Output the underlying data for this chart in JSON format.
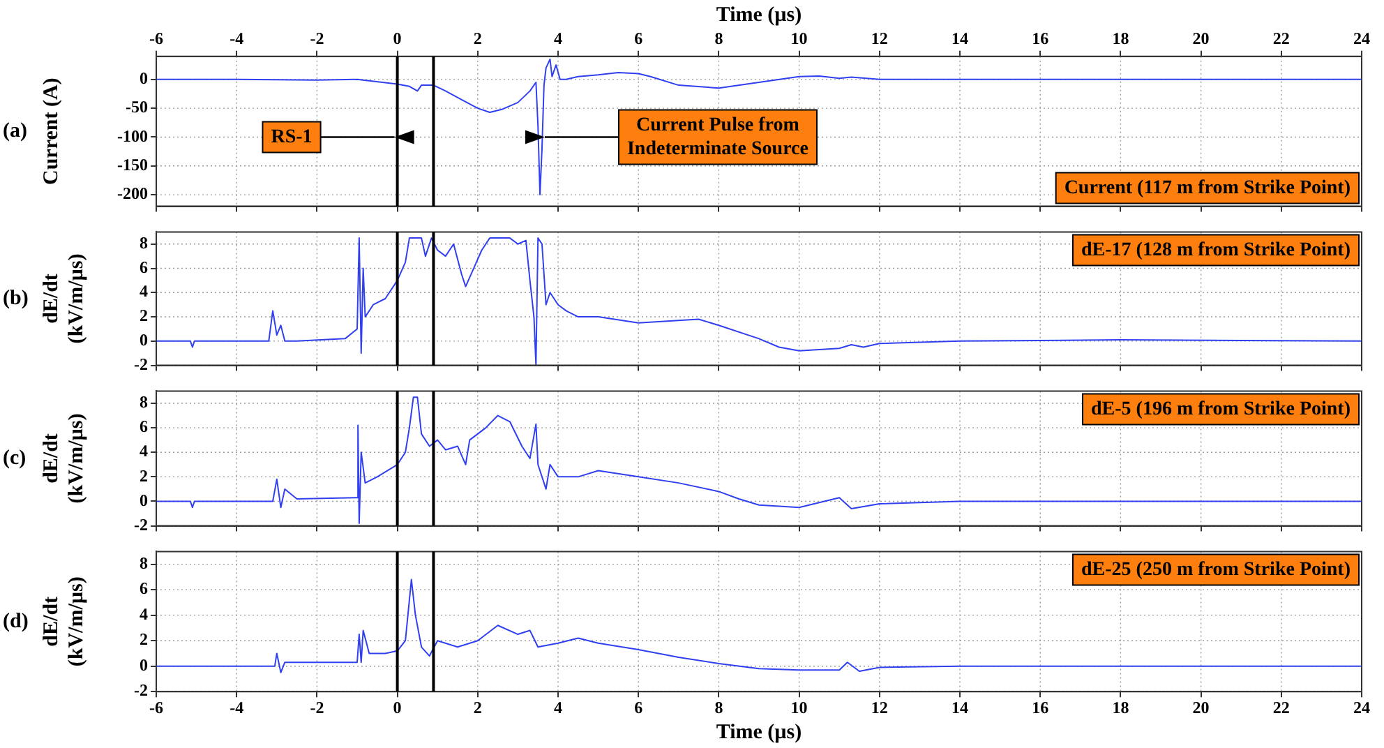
{
  "chart_data": [
    {
      "type": "line",
      "xlabel": "Time (µs)",
      "ylabel": "Current (A)",
      "xlim": [
        -6,
        24
      ],
      "xticks": [
        -6,
        -4,
        -2,
        0,
        2,
        4,
        6,
        8,
        10,
        12,
        14,
        16,
        18,
        20,
        22,
        24
      ],
      "ylim": [
        -220,
        40
      ],
      "yticks": [
        0,
        -50,
        -100,
        -150,
        -200
      ],
      "grid": true,
      "legend": false,
      "marker": "none",
      "line_style": "solid",
      "annotations": [
        "(a)",
        "Current (117 m from Strike Point)",
        {
          "text": "RS-1",
          "x": 0,
          "y": -100
        },
        {
          "text": "Current Pulse from\nIndeterminate Source",
          "x": 3.6,
          "y": -100
        }
      ],
      "ref_lines": [
        {
          "axis": "x",
          "value": 0,
          "color": "#000000"
        },
        {
          "axis": "x",
          "value": 0.9,
          "color": "#000000"
        }
      ],
      "series": [
        {
          "color": "#3040f0",
          "x": [
            -6,
            -4,
            -2,
            -1,
            0,
            0.3,
            0.5,
            0.6,
            0.9,
            1.2,
            1.6,
            2,
            2.3,
            2.6,
            3,
            3.3,
            3.45,
            3.5,
            3.55,
            3.6,
            3.65,
            3.7,
            3.8,
            3.85,
            3.95,
            4.05,
            4.2,
            4.5,
            5,
            5.5,
            6,
            6.3,
            7,
            8,
            9,
            10,
            10.5,
            11,
            11.3,
            12,
            14,
            18,
            24
          ],
          "values": [
            0,
            0,
            -1,
            0,
            -8,
            -12,
            -20,
            -10,
            -10,
            -20,
            -35,
            -50,
            -57,
            -52,
            -40,
            -20,
            -5,
            -80,
            -200,
            -120,
            -10,
            20,
            35,
            5,
            25,
            0,
            0,
            5,
            8,
            12,
            10,
            5,
            -10,
            -15,
            -5,
            5,
            6,
            2,
            4,
            0,
            0,
            0,
            0
          ]
        }
      ]
    },
    {
      "type": "line",
      "ylabel": "dE/dt\n(kV/m/µs)",
      "xlim": [
        -6,
        24
      ],
      "xticks": [
        -6,
        -4,
        -2,
        0,
        2,
        4,
        6,
        8,
        10,
        12,
        14,
        16,
        18,
        20,
        22,
        24
      ],
      "ylim": [
        -2,
        9
      ],
      "yticks": [
        -2,
        0,
        2,
        4,
        6,
        8
      ],
      "tick_labels": "y",
      "grid": true,
      "legend": false,
      "marker": "none",
      "line_style": "solid",
      "annotations": [
        "(b)",
        "dE-17 (128 m from Strike Point)"
      ],
      "ref_lines": [
        {
          "axis": "x",
          "value": 0,
          "color": "#000000"
        },
        {
          "axis": "x",
          "value": 0.9,
          "color": "#000000"
        }
      ],
      "series": [
        {
          "color": "#3040f0",
          "x": [
            -6,
            -5.15,
            -5.1,
            -5.05,
            -3.2,
            -3.1,
            -3.0,
            -2.9,
            -2.8,
            -2.5,
            -1.3,
            -1.0,
            -0.95,
            -0.9,
            -0.85,
            -0.8,
            -0.6,
            -0.3,
            0,
            0.2,
            0.3,
            0.6,
            0.7,
            0.85,
            1.0,
            1.2,
            1.4,
            1.6,
            1.7,
            1.9,
            2.1,
            2.3,
            2.8,
            3.0,
            3.2,
            3.3,
            3.4,
            3.45,
            3.5,
            3.6,
            3.7,
            3.8,
            4.0,
            4.2,
            4.5,
            5,
            6,
            7,
            7.5,
            8,
            9,
            9.5,
            10,
            11,
            11.3,
            11.6,
            12,
            14,
            18,
            24
          ],
          "values": [
            0,
            0,
            -0.5,
            0,
            0,
            2.5,
            0.5,
            1.3,
            0,
            0,
            0.2,
            1,
            8.5,
            -1,
            6,
            2,
            3,
            3.5,
            5,
            6.5,
            8.5,
            8.5,
            7,
            8.5,
            7.5,
            7,
            8,
            5.5,
            4.5,
            6,
            7.5,
            8.5,
            8.5,
            8,
            8.3,
            5,
            2,
            -2,
            8.5,
            8,
            3,
            4,
            3,
            2.5,
            2,
            2,
            1.5,
            1.7,
            1.8,
            1.3,
            0.2,
            -0.5,
            -0.8,
            -0.6,
            -0.3,
            -0.5,
            -0.2,
            0,
            0.1,
            0
          ]
        }
      ]
    },
    {
      "type": "line",
      "ylabel": "dE/dt\n(kV/m/µs)",
      "xlim": [
        -6,
        24
      ],
      "xticks": [
        -6,
        -4,
        -2,
        0,
        2,
        4,
        6,
        8,
        10,
        12,
        14,
        16,
        18,
        20,
        22,
        24
      ],
      "ylim": [
        -2,
        9
      ],
      "yticks": [
        -2,
        0,
        2,
        4,
        6,
        8
      ],
      "tick_labels": "y",
      "grid": true,
      "legend": false,
      "marker": "none",
      "line_style": "solid",
      "annotations": [
        "(c)",
        "dE-5 (196 m from Strike Point)"
      ],
      "ref_lines": [
        {
          "axis": "x",
          "value": 0,
          "color": "#000000"
        },
        {
          "axis": "x",
          "value": 0.9,
          "color": "#000000"
        }
      ],
      "series": [
        {
          "color": "#3040f0",
          "x": [
            -6,
            -5.15,
            -5.1,
            -5.05,
            -3.1,
            -3,
            -2.9,
            -2.8,
            -2.5,
            -1,
            -0.98,
            -0.95,
            -0.9,
            -0.8,
            -0.5,
            0,
            0.2,
            0.3,
            0.4,
            0.5,
            0.6,
            0.8,
            1.0,
            1.2,
            1.5,
            1.7,
            1.8,
            2.2,
            2.5,
            2.8,
            3.1,
            3.3,
            3.45,
            3.5,
            3.7,
            3.8,
            4,
            4.5,
            5,
            6,
            7,
            8,
            8.5,
            9,
            10,
            11,
            11.3,
            12,
            14,
            18,
            24
          ],
          "values": [
            0,
            0,
            -0.5,
            0,
            0,
            1.8,
            -0.5,
            1,
            0.2,
            0.3,
            6.2,
            -1.8,
            4,
            1.5,
            2,
            3,
            4,
            6,
            8.5,
            8.5,
            5.5,
            4.5,
            5,
            4.2,
            4.5,
            3,
            5,
            6,
            7,
            6.5,
            4.5,
            3.5,
            6.3,
            3,
            1,
            3,
            2,
            2,
            2.5,
            2,
            1.5,
            0.8,
            0.2,
            -0.3,
            -0.5,
            0.3,
            -0.6,
            -0.2,
            0,
            0,
            0
          ]
        }
      ]
    },
    {
      "type": "line",
      "xlabel": "Time (µs)",
      "ylabel": "dE/dt\n(kV/m/µs)",
      "xlim": [
        -6,
        24
      ],
      "xticks": [
        -6,
        -4,
        -2,
        0,
        2,
        4,
        6,
        8,
        10,
        12,
        14,
        16,
        18,
        20,
        22,
        24
      ],
      "ylim": [
        -2,
        9
      ],
      "yticks": [
        -2,
        0,
        2,
        4,
        6,
        8
      ],
      "grid": true,
      "legend": false,
      "marker": "none",
      "line_style": "solid",
      "annotations": [
        "(d)",
        "dE-25 (250 m from Strike Point)"
      ],
      "ref_lines": [
        {
          "axis": "x",
          "value": 0,
          "color": "#000000"
        },
        {
          "axis": "x",
          "value": 0.9,
          "color": "#000000"
        }
      ],
      "series": [
        {
          "color": "#3040f0",
          "x": [
            -6,
            -3.05,
            -3,
            -2.9,
            -2.8,
            -1,
            -0.95,
            -0.9,
            -0.85,
            -0.7,
            -0.3,
            0,
            0.2,
            0.35,
            0.45,
            0.6,
            0.8,
            1.0,
            1.5,
            2,
            2.5,
            3,
            3.3,
            3.5,
            4,
            4.5,
            5,
            6,
            7,
            8,
            9,
            10,
            11,
            11.2,
            11.5,
            12,
            14,
            24
          ],
          "values": [
            0,
            0,
            1,
            -0.5,
            0.3,
            0.3,
            2.5,
            0.3,
            2.8,
            1,
            1,
            1.2,
            2,
            6.8,
            4,
            1.5,
            0.8,
            2,
            1.5,
            2,
            3.2,
            2.5,
            2.8,
            1.5,
            1.8,
            2.2,
            1.8,
            1.3,
            0.7,
            0.2,
            -0.2,
            -0.3,
            -0.3,
            0.3,
            -0.4,
            -0.1,
            0,
            0
          ]
        }
      ]
    }
  ]
}
